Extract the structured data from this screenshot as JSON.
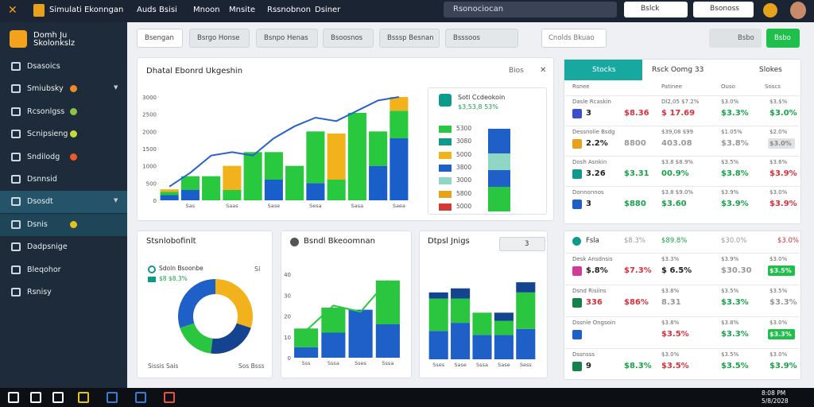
{
  "topbar": {
    "app": "Simulati Ekonngan",
    "menu": [
      "Auds",
      "Bsisi",
      "Mnoon",
      "Mnsite",
      "Rssnobnon",
      "Dsiner"
    ],
    "search": "Rsonociocan",
    "buttons": [
      "Bslck",
      "Bsonoss"
    ]
  },
  "sidebar": {
    "brand": "Domh Ju Skolonkslz",
    "items": [
      {
        "label": "Dsasoics"
      },
      {
        "label": "Smiubsky",
        "dot": "#f08a24",
        "arrow": true
      },
      {
        "label": "Rcsonlgss",
        "dot": "#8bc34a"
      },
      {
        "label": "Scnipsieng",
        "dot": "#c8d93a"
      },
      {
        "label": "Sndilodg",
        "dot": "#f05a28"
      },
      {
        "label": "Dsnnsid"
      },
      {
        "label": "Dsosdt",
        "active": true,
        "arrow": true
      },
      {
        "label": "Dsnis",
        "dot": "#e6c21d",
        "active": true
      },
      {
        "label": "Dadpsnige"
      },
      {
        "label": "Bleqohor"
      },
      {
        "label": "Rsnisy"
      }
    ]
  },
  "toolbar": {
    "tabs": [
      "Bsengan",
      "Bsrgo Honse",
      "Bsnpo Henas",
      "Bsoosnos",
      "Bsssp Besnan",
      "Bsssoos"
    ],
    "right": [
      "Cnolds Bkuao",
      "Bsbo",
      "Bsbo"
    ]
  },
  "panels": {
    "main": {
      "title": "Dhatal Ebonrd Ukgeshin",
      "action": "Bios"
    },
    "mini": {
      "title": "Sotl Ccdeokoin",
      "value": "$3,53,8 53%",
      "items": [
        {
          "label": "5300",
          "color": "#27c93f"
        },
        {
          "label": "3080",
          "color": "#0e9a8a"
        },
        {
          "label": "5000",
          "color": "#f2b21c"
        },
        {
          "label": "3800",
          "color": "#1f5fc8"
        },
        {
          "label": "3000",
          "color": "#8fd6c4"
        },
        {
          "label": "5800",
          "color": "#e6a21c"
        },
        {
          "label": "5000",
          "color": "#d23a36"
        }
      ]
    },
    "donut": {
      "title": "Stsnlobofinlt",
      "legend": [
        "Sdoln Bsoonbe",
        "$8 $8.3%"
      ],
      "corner": "Sl",
      "footer": [
        "Sissis Sais",
        "Sos Bsss"
      ]
    },
    "mid": {
      "title": "Bsndl Bkeoomnan"
    },
    "right": {
      "title": "Dtpsl Jnigs",
      "control": "3"
    }
  },
  "chart_data": [
    {
      "type": "bar",
      "categories": [
        null,
        "Sas",
        null,
        "Saas",
        null,
        "Sase",
        null,
        "Sesa",
        null,
        "Sasa",
        null,
        "Saea"
      ],
      "ylim": [
        0,
        3000
      ],
      "yticks": [
        0,
        500,
        1000,
        1500,
        2000,
        2500,
        3000
      ],
      "series": [
        {
          "color": "#1a5fc9",
          "values": [
            150,
            300,
            0,
            0,
            0,
            600,
            0,
            500,
            0,
            0,
            1000,
            1800
          ]
        },
        {
          "color": "#29c93f",
          "values": [
            100,
            400,
            700,
            300,
            1400,
            800,
            1000,
            1500,
            600,
            2540,
            1000,
            800
          ]
        },
        {
          "color": "#f2b21c",
          "values": [
            70,
            0,
            0,
            700,
            0,
            0,
            0,
            0,
            1340,
            0,
            0,
            400
          ]
        }
      ],
      "line": {
        "color": "#2a63c6",
        "values": [
          400,
          800,
          1300,
          1400,
          1300,
          1800,
          2150,
          2400,
          2300,
          2600,
          2900,
          3000
        ]
      }
    },
    {
      "type": "pie",
      "values": [
        30,
        22,
        18,
        30
      ],
      "colors": [
        "#f2b21c",
        "#14438f",
        "#2ac640",
        "#1f5fc8"
      ]
    },
    {
      "type": "bar",
      "categories": [
        "Sss",
        "Sssa",
        "Sses",
        "Sssa"
      ],
      "ylim": [
        0,
        40
      ],
      "yticks": [
        0,
        10,
        20,
        30,
        40
      ],
      "series": [
        {
          "color": "#1f5fc8",
          "values": [
            5,
            12,
            23,
            16
          ]
        },
        {
          "color": "#2ac640",
          "values": [
            9,
            12,
            0,
            21
          ]
        }
      ],
      "line": {
        "color": "#2ac640",
        "values": [
          13,
          25,
          22,
          37
        ]
      }
    },
    {
      "type": "bar",
      "categories": [
        "Sses",
        "Sase",
        "Sssa",
        "Sase",
        "Sess"
      ],
      "ylim": [
        0,
        40
      ],
      "series": [
        {
          "color": "#1f5fc8",
          "values": [
            14,
            18,
            12,
            12,
            15
          ]
        },
        {
          "color": "#2ac640",
          "values": [
            16,
            12,
            11,
            7,
            18
          ]
        },
        {
          "color": "#14438f",
          "values": [
            3,
            5,
            0,
            4,
            5
          ]
        }
      ]
    }
  ],
  "tables": [
    {
      "tabs": [
        "Stocks",
        "Rsck Oomg 33",
        "Slokes"
      ],
      "columns": [
        "Rsnee",
        "Patinee",
        "Ouso",
        "Soscs"
      ],
      "rows": [
        {
          "top": [
            "Dasle Rcaskin",
            "Dl2,05 $7.2%",
            "$3.0%",
            "$3.$%"
          ],
          "bottom": [
            "3",
            "$8.36",
            "$ 17.69",
            "$3.3%",
            "$3.0%"
          ],
          "icon": "#3a4fc8",
          "tones": [
            "k",
            "r",
            "r",
            "g",
            "g"
          ]
        },
        {
          "top": [
            "Dessnolie Bsdg",
            "$39,08 $99",
            "$1.05%",
            "$2.0%"
          ],
          "bottom": [
            "2.2%",
            "8800",
            "403.08",
            "$3.8%",
            "$3.0%"
          ],
          "icon": "#e6a21c",
          "tones": [
            "k",
            "n",
            "n",
            "n",
            "pill"
          ]
        },
        {
          "top": [
            "Dosh Asnkin",
            "$3.8 $8.9%",
            "$3.5%",
            "$3.6%"
          ],
          "bottom": [
            "3.26",
            "$3.31",
            "00.9%",
            "$3.8%",
            "$3.9%"
          ],
          "icon": "#0e9a8a",
          "tones": [
            "k",
            "g",
            "g",
            "g",
            "r"
          ]
        },
        {
          "top": [
            "Donnonnos",
            "$3.8 $9.0%",
            "$3.9%",
            "$3.0%"
          ],
          "bottom": [
            "3",
            "$880",
            "$3.60",
            "$3.9%",
            "$3.9%"
          ],
          "icon": "#1f5fc8",
          "tones": [
            "k",
            "g",
            "g",
            "g",
            "r"
          ]
        }
      ]
    },
    {
      "header": [
        "Fsla",
        "$8.3%",
        "$89.8%",
        "$30.0%",
        "$3.0%"
      ],
      "rows": [
        {
          "top": [
            "Desk Ansdnsis",
            "$3.3%",
            "$3.9%",
            "$3.0%"
          ],
          "bottom": [
            "$.8%",
            "$7.3%",
            "$ 6.5%",
            "$30.30",
            "$3.5%"
          ],
          "icon": "#d23a9a",
          "tones": [
            "k",
            "r",
            "k",
            "n",
            "pill"
          ]
        },
        {
          "top": [
            "Dsnd Risiins",
            "$3.8%",
            "$3.5%",
            "$3.5%"
          ],
          "bottom": [
            "336",
            "$86%",
            "8.31",
            "$3.3%",
            "$3.3%"
          ],
          "icon": "#15804a",
          "tones": [
            "r",
            "r",
            "n",
            "g",
            "n"
          ]
        },
        {
          "top": [
            "Dssnle Ongsoin",
            "$3.8%",
            "$3.8%",
            "$3.0%"
          ],
          "bottom": [
            "",
            "",
            "$3.5%",
            "$3.3%",
            "$3.3%"
          ],
          "icon": "#1f5fc8",
          "tones": [
            "k",
            "k",
            "r",
            "g",
            "pill"
          ]
        },
        {
          "top": [
            "Dssnsss",
            "$3.0%",
            "$3.5%",
            "$3.0%"
          ],
          "bottom": [
            "9",
            "$8.3%",
            "$3.5%",
            "$3.5%",
            "$3.9%"
          ],
          "icon": "#15804a",
          "tones": [
            "k",
            "g",
            "r",
            "g",
            "g"
          ]
        }
      ]
    }
  ],
  "taskbar": {
    "clock": [
      "8:08 PM",
      "5/8/2028"
    ]
  }
}
